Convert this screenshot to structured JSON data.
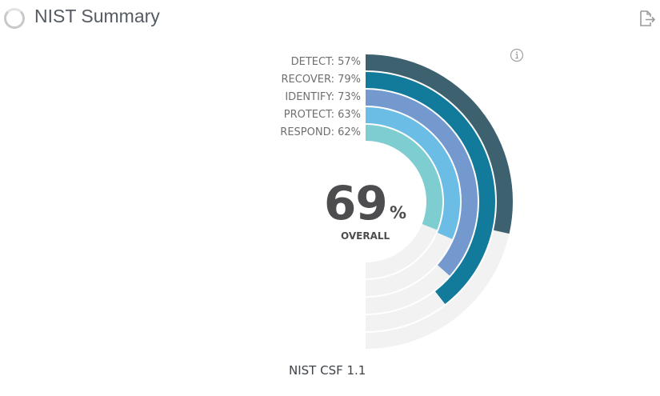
{
  "header": {
    "title": "NIST Summary",
    "loading_icon": "loading-spinner-icon",
    "export_icon": "export-icon"
  },
  "info_icon": "info-icon",
  "overall": {
    "value": "69",
    "unit": "%",
    "label": "OVERALL"
  },
  "footer": {
    "framework": "NIST CSF 1.1"
  },
  "labels": [
    "DETECT: 57%",
    "RECOVER: 79%",
    "IDENTIFY: 73%",
    "PROTECT: 63%",
    "RESPOND: 62%"
  ],
  "colors": {
    "detect": "#3e6170",
    "recover": "#127a9b",
    "identify": "#7499cf",
    "protect": "#6cbde6",
    "respond": "#7ecdd0",
    "track": "#f2f2f2"
  },
  "chart_data": {
    "type": "radial-bar",
    "title": "NIST Summary",
    "subtitle": "NIST CSF 1.1",
    "center_value": 69,
    "center_label": "OVERALL",
    "max": 100,
    "categories": [
      "DETECT",
      "RECOVER",
      "IDENTIFY",
      "PROTECT",
      "RESPOND"
    ],
    "values": [
      57,
      79,
      73,
      63,
      62
    ],
    "colors": [
      "#3e6170",
      "#127a9b",
      "#7499cf",
      "#6cbde6",
      "#7ecdd0"
    ],
    "arc_span_degrees": 180
  }
}
